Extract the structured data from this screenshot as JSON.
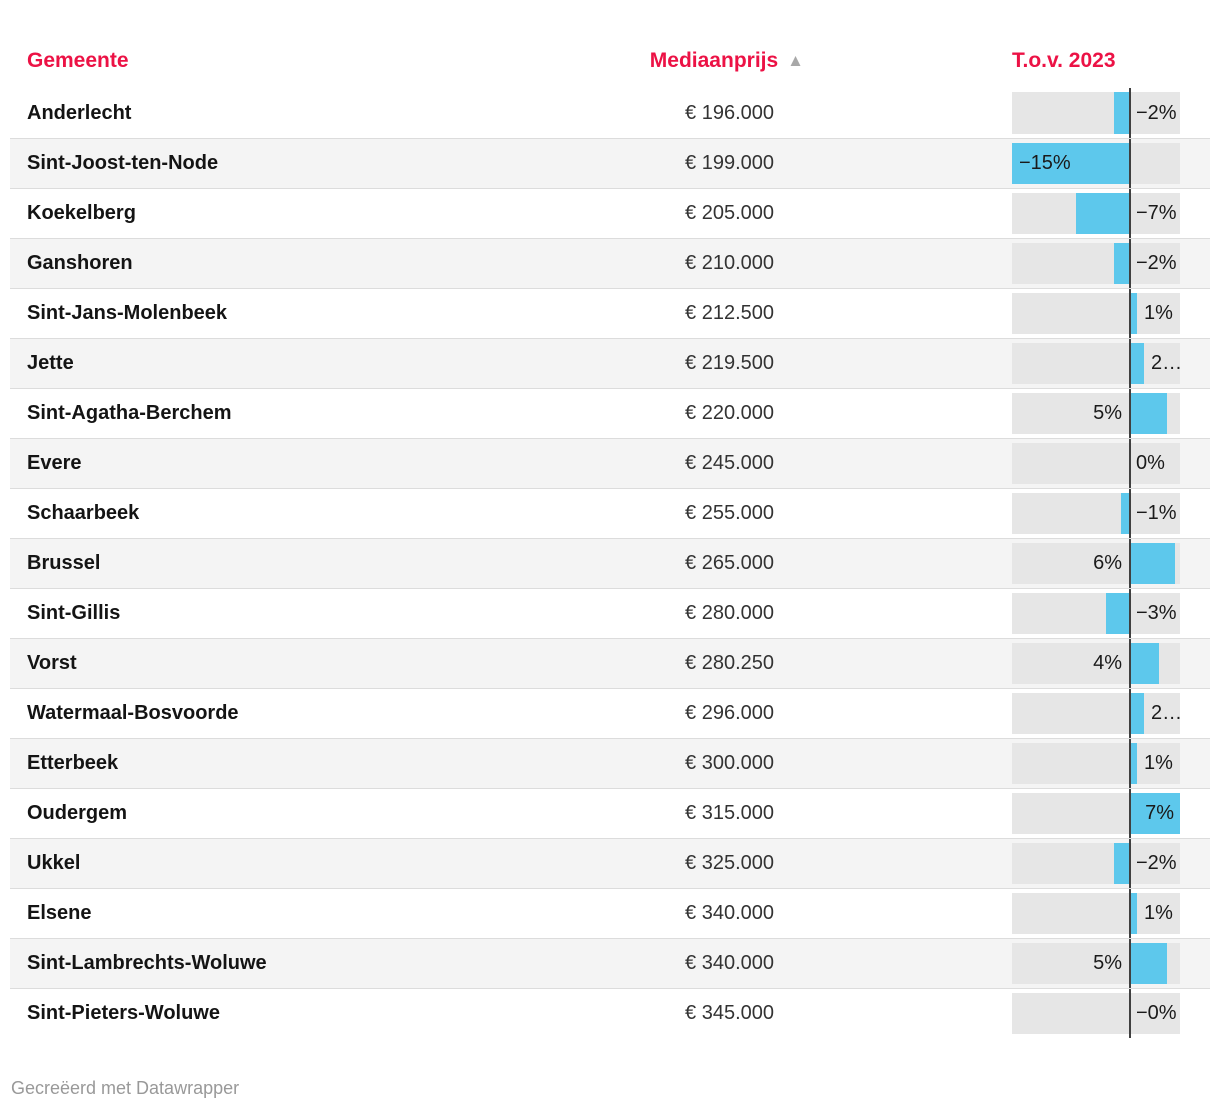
{
  "table": {
    "headers": {
      "gemeente": "Gemeente",
      "mediaanprijs": "Mediaanprijs",
      "tov": "T.o.v. 2023"
    },
    "sort_indicator": "▲",
    "rows": [
      {
        "gemeente": "Anderlecht",
        "prijs": "€ 196.000",
        "change_value": -2,
        "change_label": "−2%",
        "label_pos": "right"
      },
      {
        "gemeente": "Sint-Joost-ten-Node",
        "prijs": "€ 199.000",
        "change_value": -15,
        "change_label": "−15%",
        "label_pos": "inside-left"
      },
      {
        "gemeente": "Koekelberg",
        "prijs": "€ 205.000",
        "change_value": -7,
        "change_label": "−7%",
        "label_pos": "right"
      },
      {
        "gemeente": "Ganshoren",
        "prijs": "€ 210.000",
        "change_value": -2,
        "change_label": "−2%",
        "label_pos": "right"
      },
      {
        "gemeente": "Sint-Jans-Molenbeek",
        "prijs": "€ 212.500",
        "change_value": 1,
        "change_label": "1%",
        "label_pos": "right"
      },
      {
        "gemeente": "Jette",
        "prijs": "€ 219.500",
        "change_value": 2,
        "change_label": "2…",
        "label_pos": "right"
      },
      {
        "gemeente": "Sint-Agatha-Berchem",
        "prijs": "€ 220.000",
        "change_value": 5,
        "change_label": "5%",
        "label_pos": "left"
      },
      {
        "gemeente": "Evere",
        "prijs": "€ 245.000",
        "change_value": 0,
        "change_label": "0%",
        "label_pos": "right"
      },
      {
        "gemeente": "Schaarbeek",
        "prijs": "€ 255.000",
        "change_value": -1,
        "change_label": "−1%",
        "label_pos": "right"
      },
      {
        "gemeente": "Brussel",
        "prijs": "€ 265.000",
        "change_value": 6,
        "change_label": "6%",
        "label_pos": "left"
      },
      {
        "gemeente": "Sint-Gillis",
        "prijs": "€ 280.000",
        "change_value": -3,
        "change_label": "−3%",
        "label_pos": "right"
      },
      {
        "gemeente": "Vorst",
        "prijs": "€ 280.250",
        "change_value": 4,
        "change_label": "4%",
        "label_pos": "left"
      },
      {
        "gemeente": "Watermaal-Bosvoorde",
        "prijs": "€ 296.000",
        "change_value": 2,
        "change_label": "2…",
        "label_pos": "right"
      },
      {
        "gemeente": "Etterbeek",
        "prijs": "€ 300.000",
        "change_value": 1,
        "change_label": "1%",
        "label_pos": "right"
      },
      {
        "gemeente": "Oudergem",
        "prijs": "€ 315.000",
        "change_value": 7,
        "change_label": "7%",
        "label_pos": "inside-right"
      },
      {
        "gemeente": "Ukkel",
        "prijs": "€ 325.000",
        "change_value": -2,
        "change_label": "−2%",
        "label_pos": "right"
      },
      {
        "gemeente": "Elsene",
        "prijs": "€ 340.000",
        "change_value": 1,
        "change_label": "1%",
        "label_pos": "right"
      },
      {
        "gemeente": "Sint-Lambrechts-Woluwe",
        "prijs": "€ 340.000",
        "change_value": 5,
        "change_label": "5%",
        "label_pos": "left"
      },
      {
        "gemeente": "Sint-Pieters-Woluwe",
        "prijs": "€ 345.000",
        "change_value": 0,
        "change_label": "−0%",
        "label_pos": "right"
      }
    ]
  },
  "footer": {
    "credit": "Gecreëerd met Datawrapper"
  },
  "colors": {
    "header_red": "#ec1245",
    "bar_blue": "#5dc8ec",
    "bar_track": "#e6e6e6",
    "zebra_stripe": "#f4f4f4",
    "row_separator": "#dcdcdc",
    "axis_line": "#404040",
    "sort_arrow": "#a8a8a8",
    "credit_gray": "#999999"
  },
  "chart_data": {
    "type": "table",
    "columns": [
      "Gemeente",
      "Mediaanprijs",
      "T.o.v. 2023"
    ],
    "rows": [
      [
        "Anderlecht",
        196000,
        -2
      ],
      [
        "Sint-Joost-ten-Node",
        199000,
        -15
      ],
      [
        "Koekelberg",
        205000,
        -7
      ],
      [
        "Ganshoren",
        210000,
        -2
      ],
      [
        "Sint-Jans-Molenbeek",
        212500,
        1
      ],
      [
        "Jette",
        219500,
        2
      ],
      [
        "Sint-Agatha-Berchem",
        220000,
        5
      ],
      [
        "Evere",
        245000,
        0
      ],
      [
        "Schaarbeek",
        255000,
        -1
      ],
      [
        "Brussel",
        265000,
        6
      ],
      [
        "Sint-Gillis",
        280000,
        -3
      ],
      [
        "Vorst",
        280250,
        4
      ],
      [
        "Watermaal-Bosvoorde",
        296000,
        2
      ],
      [
        "Etterbeek",
        300000,
        1
      ],
      [
        "Oudergem",
        315000,
        7
      ],
      [
        "Ukkel",
        325000,
        -2
      ],
      [
        "Elsene",
        340000,
        1
      ],
      [
        "Sint-Lambrechts-Woluwe",
        340000,
        5
      ],
      [
        "Sint-Pieters-Woluwe",
        345000,
        0
      ]
    ],
    "bar_column": "T.o.v. 2023",
    "bar_unit": "%",
    "bar_axis_range": [
      -15,
      7
    ],
    "sort": {
      "column": "Mediaanprijs",
      "direction": "ascending"
    },
    "legend_position": "none",
    "grid": false
  }
}
